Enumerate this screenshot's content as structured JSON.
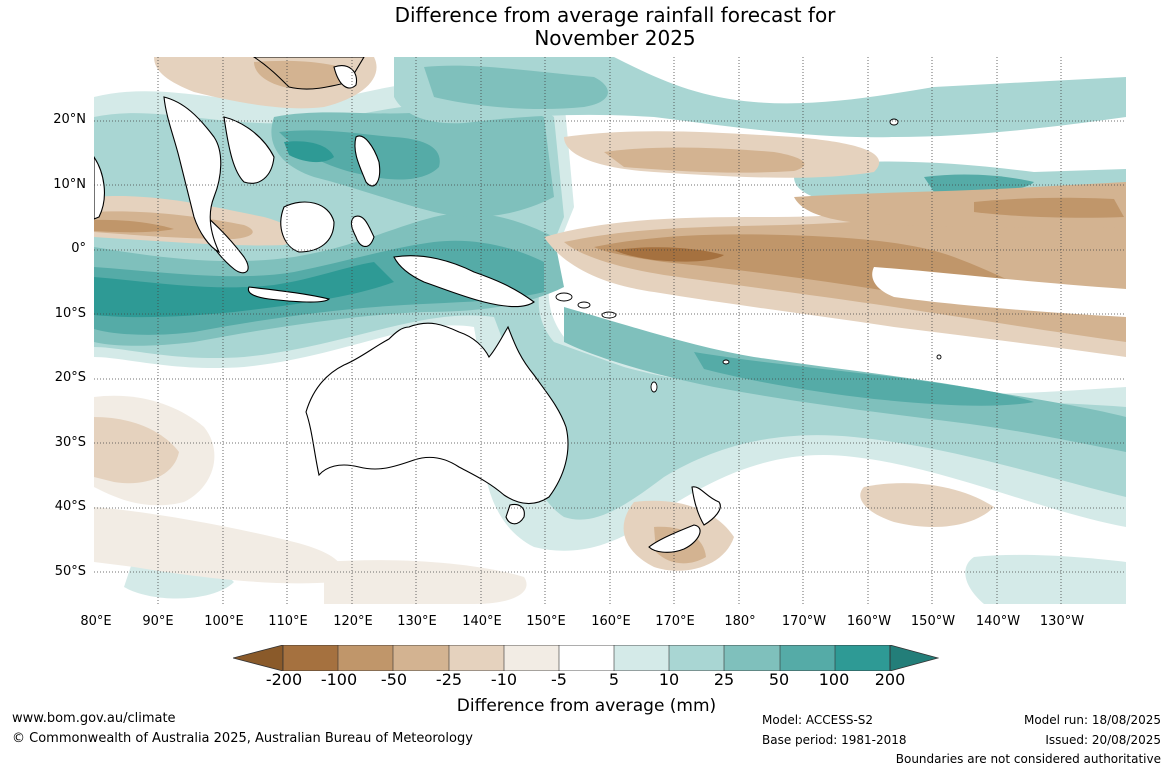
{
  "title": {
    "line1": "Difference from average rainfall forecast for",
    "line2": "November 2025"
  },
  "map": {
    "region": "Australia and western/central Pacific",
    "lat_labels": [
      "20°N",
      "10°N",
      "0°",
      "10°S",
      "20°S",
      "30°S",
      "40°S",
      "50°S"
    ],
    "lon_labels": [
      "80°E",
      "90°E",
      "100°E",
      "110°E",
      "120°E",
      "130°E",
      "140°E",
      "150°E",
      "160°E",
      "170°E",
      "180°",
      "170°W",
      "160°W",
      "150°W",
      "140°W",
      "130°W"
    ]
  },
  "colorbar": {
    "title": "Difference from average (mm)",
    "ticks": [
      "-200",
      "-100",
      "-50",
      "-25",
      "-10",
      "-5",
      "5",
      "10",
      "25",
      "50",
      "100",
      "200"
    ],
    "colors": {
      "below_min": "#8a5a2a",
      "dry_200_100": "#a5713f",
      "dry_100_50": "#c0966a",
      "dry_50_25": "#d3b391",
      "dry_25_10": "#e5d2be",
      "dry_10_5": "#f2ece4",
      "neutral": "#ffffff",
      "wet_5_10": "#d4eae8",
      "wet_10_25": "#a9d6d3",
      "wet_25_50": "#7fc0bc",
      "wet_50_100": "#55aba7",
      "wet_100_200": "#2e9a95",
      "above_max": "#237e79"
    }
  },
  "footer": {
    "website": "www.bom.gov.au/climate",
    "copyright": "© Commonwealth of Australia 2025, Australian Bureau of Meteorology",
    "model": "Model: ACCESS-S2",
    "base_period": "Base period: 1981-2018",
    "model_run": "Model run: 18/08/2025",
    "issued": "Issued: 20/08/2025",
    "disclaimer": "Boundaries are not considered authoritative"
  }
}
